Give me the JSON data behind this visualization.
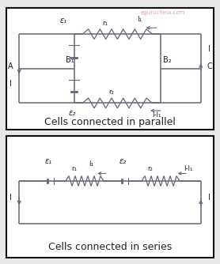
{
  "fig_width": 2.78,
  "fig_height": 3.34,
  "dpi": 100,
  "bg_color": "#e8e8e8",
  "panel_bg": "white",
  "border_color": "#111111",
  "line_color": "#666677",
  "text_color": "#222222",
  "watermark": "eguruchela.com",
  "watermark_color": "#e09090",
  "title1": "Cells connected in parallel",
  "title2": "Cells connected in series",
  "title_fontsize": 9.0,
  "label_fontsize": 7.0,
  "small_fontsize": 6.0
}
